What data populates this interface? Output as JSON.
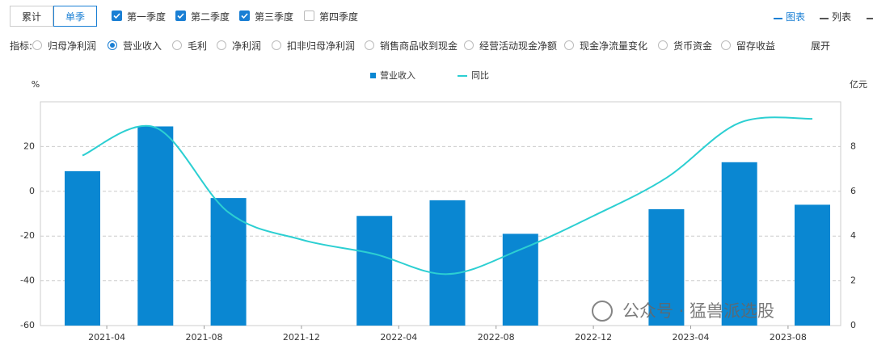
{
  "ui": {
    "tabs": [
      {
        "label": "累计",
        "active": false
      },
      {
        "label": "单季",
        "active": true
      }
    ],
    "quarters": [
      {
        "label": "第一季度",
        "checked": true
      },
      {
        "label": "第二季度",
        "checked": true
      },
      {
        "label": "第三季度",
        "checked": true
      },
      {
        "label": "第四季度",
        "checked": false
      }
    ],
    "views": [
      {
        "label": "图表",
        "active": true
      },
      {
        "label": "列表",
        "active": false
      }
    ],
    "indicator_label": "指标:",
    "indicators": [
      "归母净利润",
      "营业收入",
      "毛利",
      "净利润",
      "扣非归母净利润",
      "销售商品收到现金",
      "经营活动现金净额",
      "现金净流量变化",
      "货币资金",
      "留存收益"
    ],
    "selected_indicator": 1,
    "expand": "展开"
  },
  "chart_data": {
    "type": "bar-line",
    "y_label": "%",
    "y2_label": "亿元",
    "x": [
      "2021-03",
      "2021-06",
      "2021-09",
      "2021-12",
      "2022-03",
      "2022-06",
      "2022-09",
      "2022-12",
      "2023-03",
      "2023-06",
      "2023-09"
    ],
    "xticks": [
      "2021-04",
      "2021-08",
      "2021-12",
      "2022-04",
      "2022-08",
      "2022-12",
      "2023-04",
      "2023-08"
    ],
    "series": [
      {
        "name": "营业收入",
        "type": "bar",
        "axis": "y2",
        "color": "#0a87d2",
        "values": [
          6.9,
          8.9,
          5.7,
          null,
          4.9,
          5.6,
          4.1,
          null,
          5.2,
          7.3,
          5.4
        ]
      },
      {
        "name": "同比",
        "type": "line",
        "color": "#2ccfd2",
        "values": [
          16,
          28.5,
          -9.4,
          -21.6,
          -28,
          -37,
          -26,
          -11,
          6,
          30.6,
          32.4
        ]
      }
    ],
    "ylim": [
      -60,
      40
    ],
    "yticks": [
      -60,
      -40,
      -20,
      0,
      20
    ],
    "y2lim": [
      0,
      10
    ],
    "y2ticks": [
      0,
      2,
      4,
      6,
      8
    ],
    "grid": true
  },
  "watermark": "公众号 · 猛兽派选股"
}
